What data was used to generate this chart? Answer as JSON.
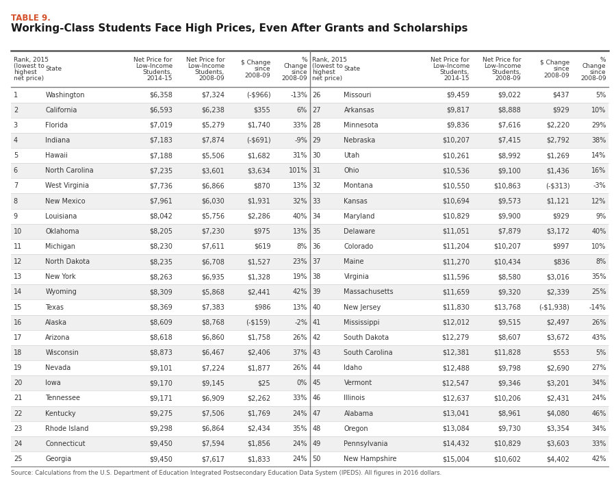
{
  "table_label": "TABLE 9.",
  "title": "Working-Class Students Face High Prices, Even After Grants and Scholarships",
  "footnote": "Source: Calculations from the U.S. Department of Education Integrated Postsecondary Education Data System (IPEDS). All figures in 2016 dollars.",
  "col_headers_left": [
    "Rank, 2015\n(lowest to\nhighest\nnet price)",
    "State",
    "Net Price for\nLow-Income\nStudents,\n2014-15",
    "Net Price for\nLow-Income\nStudents,\n2008-09",
    "$ Change\nsince\n2008-09",
    "%\nChange\nsince\n2008-09"
  ],
  "col_headers_right": [
    "Rank, 2015\n(lowest to\nhighest\nnet price)",
    "State",
    "Net Price for\nLow-Income\nStudents,\n2014-15",
    "Net Price for\nLow-Income\nStudents,\n2008-09",
    "$ Change\nsince\n2008-09",
    "%\nChange\nsince\n2008-09"
  ],
  "left_data": [
    [
      "1",
      "Washington",
      "$6,358",
      "$7,324",
      "(-$966)",
      "-13%"
    ],
    [
      "2",
      "California",
      "$6,593",
      "$6,238",
      "$355",
      "6%"
    ],
    [
      "3",
      "Florida",
      "$7,019",
      "$5,279",
      "$1,740",
      "33%"
    ],
    [
      "4",
      "Indiana",
      "$7,183",
      "$7,874",
      "(-$691)",
      "-9%"
    ],
    [
      "5",
      "Hawaii",
      "$7,188",
      "$5,506",
      "$1,682",
      "31%"
    ],
    [
      "6",
      "North Carolina",
      "$7,235",
      "$3,601",
      "$3,634",
      "101%"
    ],
    [
      "7",
      "West Virginia",
      "$7,736",
      "$6,866",
      "$870",
      "13%"
    ],
    [
      "8",
      "New Mexico",
      "$7,961",
      "$6,030",
      "$1,931",
      "32%"
    ],
    [
      "9",
      "Louisiana",
      "$8,042",
      "$5,756",
      "$2,286",
      "40%"
    ],
    [
      "10",
      "Oklahoma",
      "$8,205",
      "$7,230",
      "$975",
      "13%"
    ],
    [
      "11",
      "Michigan",
      "$8,230",
      "$7,611",
      "$619",
      "8%"
    ],
    [
      "12",
      "North Dakota",
      "$8,235",
      "$6,708",
      "$1,527",
      "23%"
    ],
    [
      "13",
      "New York",
      "$8,263",
      "$6,935",
      "$1,328",
      "19%"
    ],
    [
      "14",
      "Wyoming",
      "$8,309",
      "$5,868",
      "$2,441",
      "42%"
    ],
    [
      "15",
      "Texas",
      "$8,369",
      "$7,383",
      "$986",
      "13%"
    ],
    [
      "16",
      "Alaska",
      "$8,609",
      "$8,768",
      "(-$159)",
      "-2%"
    ],
    [
      "17",
      "Arizona",
      "$8,618",
      "$6,860",
      "$1,758",
      "26%"
    ],
    [
      "18",
      "Wisconsin",
      "$8,873",
      "$6,467",
      "$2,406",
      "37%"
    ],
    [
      "19",
      "Nevada",
      "$9,101",
      "$7,224",
      "$1,877",
      "26%"
    ],
    [
      "20",
      "Iowa",
      "$9,170",
      "$9,145",
      "$25",
      "0%"
    ],
    [
      "21",
      "Tennessee",
      "$9,171",
      "$6,909",
      "$2,262",
      "33%"
    ],
    [
      "22",
      "Kentucky",
      "$9,275",
      "$7,506",
      "$1,769",
      "24%"
    ],
    [
      "23",
      "Rhode Island",
      "$9,298",
      "$6,864",
      "$2,434",
      "35%"
    ],
    [
      "24",
      "Connecticut",
      "$9,450",
      "$7,594",
      "$1,856",
      "24%"
    ],
    [
      "25",
      "Georgia",
      "$9,450",
      "$7,617",
      "$1,833",
      "24%"
    ]
  ],
  "right_data": [
    [
      "26",
      "Missouri",
      "$9,459",
      "$9,022",
      "$437",
      "5%"
    ],
    [
      "27",
      "Arkansas",
      "$9,817",
      "$8,888",
      "$929",
      "10%"
    ],
    [
      "28",
      "Minnesota",
      "$9,836",
      "$7,616",
      "$2,220",
      "29%"
    ],
    [
      "29",
      "Nebraska",
      "$10,207",
      "$7,415",
      "$2,792",
      "38%"
    ],
    [
      "30",
      "Utah",
      "$10,261",
      "$8,992",
      "$1,269",
      "14%"
    ],
    [
      "31",
      "Ohio",
      "$10,536",
      "$9,100",
      "$1,436",
      "16%"
    ],
    [
      "32",
      "Montana",
      "$10,550",
      "$10,863",
      "(-$313)",
      "-3%"
    ],
    [
      "33",
      "Kansas",
      "$10,694",
      "$9,573",
      "$1,121",
      "12%"
    ],
    [
      "34",
      "Maryland",
      "$10,829",
      "$9,900",
      "$929",
      "9%"
    ],
    [
      "35",
      "Delaware",
      "$11,051",
      "$7,879",
      "$3,172",
      "40%"
    ],
    [
      "36",
      "Colorado",
      "$11,204",
      "$10,207",
      "$997",
      "10%"
    ],
    [
      "37",
      "Maine",
      "$11,270",
      "$10,434",
      "$836",
      "8%"
    ],
    [
      "38",
      "Virginia",
      "$11,596",
      "$8,580",
      "$3,016",
      "35%"
    ],
    [
      "39",
      "Massachusetts",
      "$11,659",
      "$9,320",
      "$2,339",
      "25%"
    ],
    [
      "40",
      "New Jersey",
      "$11,830",
      "$13,768",
      "(-$1,938)",
      "-14%"
    ],
    [
      "41",
      "Mississippi",
      "$12,012",
      "$9,515",
      "$2,497",
      "26%"
    ],
    [
      "42",
      "South Dakota",
      "$12,279",
      "$8,607",
      "$3,672",
      "43%"
    ],
    [
      "43",
      "South Carolina",
      "$12,381",
      "$11,828",
      "$553",
      "5%"
    ],
    [
      "44",
      "Idaho",
      "$12,488",
      "$9,798",
      "$2,690",
      "27%"
    ],
    [
      "45",
      "Vermont",
      "$12,547",
      "$9,346",
      "$3,201",
      "34%"
    ],
    [
      "46",
      "Illinois",
      "$12,637",
      "$10,206",
      "$2,431",
      "24%"
    ],
    [
      "47",
      "Alabama",
      "$13,041",
      "$8,961",
      "$4,080",
      "46%"
    ],
    [
      "48",
      "Oregon",
      "$13,084",
      "$9,730",
      "$3,354",
      "34%"
    ],
    [
      "49",
      "Pennsylvania",
      "$14,432",
      "$10,829",
      "$3,603",
      "33%"
    ],
    [
      "50",
      "New Hampshire",
      "$15,004",
      "$10,602",
      "$4,402",
      "42%"
    ]
  ],
  "table_label_color": "#d4502a",
  "row_colors": [
    "#ffffff",
    "#f0f0f0"
  ],
  "text_color": "#333333"
}
